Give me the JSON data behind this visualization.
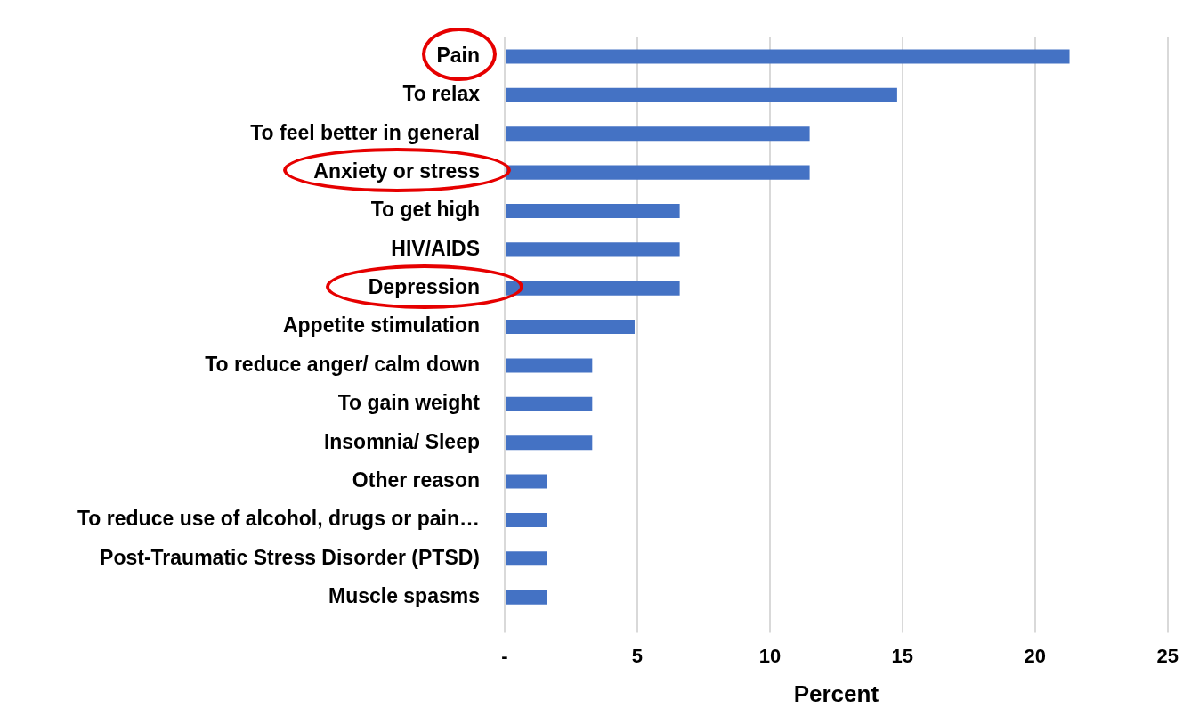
{
  "chart_data": {
    "type": "bar",
    "orientation": "horizontal",
    "xlabel": "Percent",
    "categories": [
      "Pain",
      "To relax",
      "To feel better in general",
      "Anxiety or stress",
      "To get high",
      "HIV/AIDS",
      "Depression",
      "Appetite stimulation",
      "To reduce anger/ calm down",
      "To gain weight",
      "Insomnia/ Sleep",
      "Other reason",
      "To reduce use of alcohol, drugs or pain…",
      "Post-Traumatic Stress Disorder (PTSD)",
      "Muscle spasms"
    ],
    "values": [
      21.3,
      14.8,
      11.5,
      11.5,
      6.6,
      6.6,
      6.6,
      4.9,
      3.3,
      3.3,
      3.3,
      1.6,
      1.6,
      1.6,
      1.6
    ],
    "color": "#4472c4",
    "xlim": [
      0,
      25
    ],
    "xticks": [
      {
        "value": 0,
        "label": "-"
      },
      5,
      10,
      15,
      20,
      25
    ],
    "grid": "x",
    "legend": false
  }
}
